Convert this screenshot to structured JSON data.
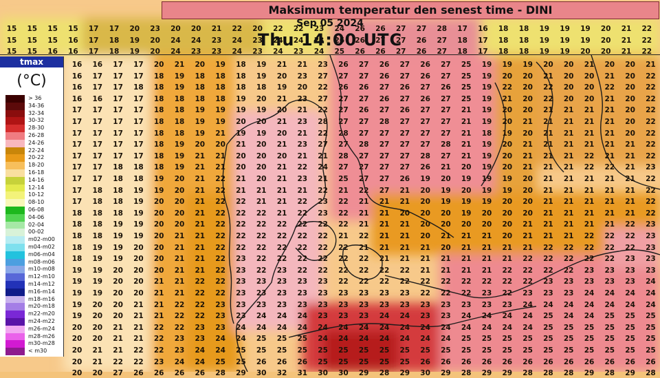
{
  "header": {
    "title": "Maksimum temperatur den senest time - DINI",
    "date": "Sep 05 2024",
    "valid_time": "Thu 14:00 UTC"
  },
  "legend": {
    "variable": "tmax",
    "unit": "(°C)",
    "items": [
      {
        "label": "> 36",
        "color": "#3b0000"
      },
      {
        "label": "34-36",
        "color": "#5c0a0a"
      },
      {
        "label": "32-34",
        "color": "#8a0d0d"
      },
      {
        "label": "30-32",
        "color": "#b01414"
      },
      {
        "label": "28-30",
        "color": "#d62e2e"
      },
      {
        "label": "26-28",
        "color": "#f07c82"
      },
      {
        "label": "24-26",
        "color": "#f8b8bf"
      },
      {
        "label": "22-24",
        "color": "#c8860a"
      },
      {
        "label": "20-22",
        "color": "#e89a18"
      },
      {
        "label": "18-20",
        "color": "#f7bf5c"
      },
      {
        "label": "16-18",
        "color": "#f9dfa0"
      },
      {
        "label": "14-16",
        "color": "#c6d23a"
      },
      {
        "label": "12-14",
        "color": "#e3ea4c"
      },
      {
        "label": "10-12",
        "color": "#f3f37a"
      },
      {
        "label": "08-10",
        "color": "#f8f8b8"
      },
      {
        "label": "06-08",
        "color": "#1db81d"
      },
      {
        "label": "04-06",
        "color": "#52d452"
      },
      {
        "label": "02-04",
        "color": "#a6e8a6"
      },
      {
        "label": "00-02",
        "color": "#d8f2d8"
      },
      {
        "label": "m02-m00",
        "color": "#b6ecf2"
      },
      {
        "label": "m04-m02",
        "color": "#7ee0ee"
      },
      {
        "label": "m06-m04",
        "color": "#22c2de"
      },
      {
        "label": "m08-m06",
        "color": "#4c9fe0"
      },
      {
        "label": "m10-m08",
        "color": "#8aa8e8"
      },
      {
        "label": "m12-m10",
        "color": "#5868d8"
      },
      {
        "label": "m14-m12",
        "color": "#2232b8"
      },
      {
        "label": "m16-m14",
        "color": "#101c8a"
      },
      {
        "label": "m18-m16",
        "color": "#c8b2ee"
      },
      {
        "label": "m20-m18",
        "color": "#a47ee6"
      },
      {
        "label": "m22-m20",
        "color": "#7a28d6"
      },
      {
        "label": "m24-m22",
        "color": "#5a14a8"
      },
      {
        "label": "m26-m24",
        "color": "#f2a8f2"
      },
      {
        "label": "m28-m26",
        "color": "#ea62ea"
      },
      {
        "label": "m30-m28",
        "color": "#d21ad2"
      },
      {
        "label": "< m30",
        "color": "#8e1a8e"
      }
    ]
  },
  "grid": {
    "top_rows": [
      [
        15,
        15,
        15,
        15,
        17,
        17,
        20,
        23,
        20,
        20,
        21,
        22,
        20,
        22,
        22,
        23,
        24,
        26,
        26,
        27,
        27,
        28,
        17,
        16,
        18,
        18,
        19,
        19,
        19,
        20,
        21,
        22
      ],
      [
        15,
        15,
        15,
        16,
        17,
        18,
        19,
        20,
        24,
        24,
        23,
        24,
        23,
        24,
        24,
        23,
        26,
        26,
        27,
        27,
        26,
        27,
        18,
        17,
        18,
        18,
        19,
        19,
        19,
        20,
        21,
        22
      ],
      [
        15,
        15,
        16,
        16,
        17,
        18,
        19,
        20,
        24,
        23,
        23,
        24,
        23,
        24,
        23,
        24,
        25,
        26,
        26,
        27,
        26,
        27,
        18,
        17,
        18,
        18,
        19,
        19,
        20,
        20,
        21,
        22
      ]
    ],
    "rows": [
      [
        16,
        16,
        17,
        17,
        20,
        21,
        20,
        19,
        18,
        19,
        21,
        21,
        23,
        26,
        27,
        26,
        27,
        26,
        27,
        25,
        19,
        19,
        19,
        20,
        20,
        21,
        20,
        20,
        21
      ],
      [
        16,
        17,
        17,
        17,
        18,
        19,
        18,
        18,
        18,
        19,
        20,
        23,
        27,
        27,
        27,
        26,
        27,
        26,
        27,
        25,
        19,
        20,
        20,
        21,
        20,
        20,
        21,
        20,
        22
      ],
      [
        16,
        17,
        17,
        18,
        18,
        19,
        18,
        18,
        18,
        18,
        19,
        20,
        22,
        26,
        26,
        27,
        26,
        27,
        26,
        25,
        19,
        22,
        20,
        22,
        20,
        20,
        22,
        20,
        22
      ],
      [
        16,
        16,
        17,
        17,
        18,
        18,
        18,
        18,
        19,
        20,
        21,
        23,
        27,
        27,
        27,
        26,
        27,
        26,
        27,
        25,
        19,
        21,
        20,
        22,
        20,
        20,
        21,
        20,
        22
      ],
      [
        17,
        17,
        17,
        17,
        18,
        18,
        19,
        19,
        19,
        19,
        20,
        21,
        22,
        27,
        26,
        27,
        26,
        27,
        27,
        21,
        19,
        20,
        20,
        21,
        21,
        21,
        21,
        20,
        22
      ],
      [
        17,
        17,
        17,
        17,
        18,
        18,
        19,
        19,
        20,
        20,
        21,
        23,
        28,
        27,
        27,
        28,
        27,
        27,
        27,
        21,
        19,
        20,
        21,
        21,
        21,
        21,
        21,
        20,
        22
      ],
      [
        17,
        17,
        17,
        17,
        18,
        18,
        19,
        21,
        19,
        19,
        20,
        21,
        22,
        28,
        27,
        27,
        27,
        27,
        27,
        21,
        18,
        19,
        20,
        21,
        21,
        21,
        21,
        20,
        22
      ],
      [
        17,
        17,
        17,
        17,
        18,
        19,
        20,
        20,
        21,
        20,
        21,
        23,
        27,
        27,
        28,
        27,
        27,
        27,
        28,
        21,
        19,
        20,
        21,
        21,
        21,
        21,
        21,
        21,
        22
      ],
      [
        17,
        17,
        17,
        17,
        18,
        19,
        21,
        21,
        20,
        20,
        20,
        21,
        21,
        28,
        27,
        27,
        27,
        28,
        27,
        21,
        19,
        20,
        21,
        21,
        21,
        22,
        21,
        21,
        22
      ],
      [
        17,
        17,
        18,
        18,
        18,
        19,
        21,
        21,
        20,
        20,
        21,
        22,
        24,
        27,
        27,
        27,
        27,
        26,
        21,
        20,
        19,
        20,
        21,
        21,
        21,
        22,
        22,
        21,
        23
      ],
      [
        17,
        17,
        18,
        18,
        19,
        20,
        21,
        22,
        21,
        20,
        21,
        23,
        21,
        25,
        27,
        27,
        26,
        19,
        20,
        19,
        19,
        19,
        20,
        21,
        21,
        21,
        21,
        21,
        22
      ],
      [
        17,
        18,
        18,
        19,
        19,
        20,
        21,
        22,
        21,
        21,
        21,
        21,
        22,
        21,
        22,
        27,
        21,
        20,
        19,
        20,
        19,
        19,
        20,
        21,
        21,
        21,
        21,
        21,
        22
      ],
      [
        17,
        18,
        18,
        19,
        20,
        20,
        21,
        22,
        22,
        21,
        21,
        22,
        23,
        22,
        21,
        21,
        21,
        20,
        19,
        19,
        19,
        20,
        20,
        21,
        21,
        21,
        21,
        21,
        22
      ],
      [
        18,
        18,
        18,
        19,
        20,
        20,
        21,
        22,
        22,
        22,
        21,
        22,
        23,
        22,
        21,
        21,
        20,
        20,
        20,
        19,
        20,
        20,
        20,
        21,
        21,
        21,
        21,
        21,
        22
      ],
      [
        18,
        18,
        19,
        19,
        20,
        20,
        21,
        22,
        22,
        22,
        22,
        22,
        22,
        22,
        21,
        21,
        21,
        20,
        20,
        20,
        20,
        20,
        21,
        21,
        21,
        21,
        21,
        22,
        23
      ],
      [
        18,
        18,
        19,
        19,
        20,
        21,
        21,
        22,
        22,
        22,
        22,
        22,
        22,
        21,
        22,
        21,
        21,
        20,
        21,
        21,
        21,
        20,
        21,
        21,
        21,
        22,
        22,
        22,
        23
      ],
      [
        18,
        19,
        19,
        20,
        20,
        21,
        21,
        22,
        22,
        22,
        22,
        22,
        22,
        22,
        21,
        21,
        21,
        21,
        20,
        21,
        21,
        21,
        21,
        22,
        22,
        22,
        22,
        22,
        23
      ],
      [
        18,
        19,
        19,
        20,
        20,
        21,
        21,
        22,
        23,
        22,
        22,
        22,
        22,
        22,
        22,
        21,
        21,
        21,
        21,
        21,
        21,
        21,
        22,
        22,
        22,
        22,
        22,
        23,
        23
      ],
      [
        19,
        19,
        20,
        20,
        20,
        21,
        21,
        22,
        23,
        22,
        23,
        22,
        22,
        22,
        22,
        22,
        22,
        21,
        21,
        21,
        21,
        22,
        22,
        22,
        22,
        23,
        23,
        23,
        23
      ],
      [
        19,
        19,
        20,
        20,
        21,
        21,
        22,
        22,
        23,
        23,
        23,
        23,
        23,
        22,
        22,
        22,
        22,
        22,
        22,
        22,
        22,
        22,
        22,
        23,
        23,
        23,
        23,
        23,
        24
      ],
      [
        19,
        19,
        20,
        20,
        21,
        21,
        22,
        22,
        23,
        23,
        23,
        23,
        23,
        23,
        23,
        23,
        23,
        22,
        22,
        22,
        23,
        22,
        23,
        23,
        23,
        24,
        24,
        24,
        24
      ],
      [
        19,
        20,
        20,
        21,
        21,
        22,
        22,
        23,
        23,
        23,
        23,
        23,
        23,
        23,
        23,
        23,
        23,
        23,
        23,
        23,
        23,
        23,
        24,
        24,
        24,
        24,
        24,
        24,
        24
      ],
      [
        19,
        20,
        20,
        21,
        21,
        22,
        22,
        23,
        23,
        24,
        24,
        24,
        23,
        23,
        23,
        24,
        24,
        23,
        23,
        24,
        24,
        24,
        24,
        25,
        24,
        24,
        25,
        25,
        25
      ],
      [
        20,
        20,
        21,
        21,
        22,
        22,
        23,
        23,
        24,
        24,
        24,
        24,
        24,
        24,
        24,
        24,
        24,
        24,
        24,
        24,
        24,
        24,
        24,
        25,
        25,
        25,
        25,
        25,
        25
      ],
      [
        20,
        20,
        21,
        21,
        22,
        23,
        23,
        24,
        24,
        25,
        25,
        25,
        24,
        24,
        24,
        24,
        24,
        24,
        24,
        25,
        25,
        25,
        25,
        25,
        25,
        25,
        25,
        25,
        25
      ],
      [
        20,
        21,
        21,
        22,
        22,
        23,
        24,
        24,
        25,
        25,
        25,
        25,
        25,
        25,
        25,
        25,
        25,
        25,
        25,
        25,
        25,
        25,
        25,
        25,
        25,
        25,
        25,
        25,
        25
      ],
      [
        20,
        21,
        22,
        22,
        23,
        24,
        24,
        25,
        25,
        26,
        26,
        26,
        25,
        25,
        25,
        25,
        25,
        26,
        26,
        26,
        26,
        26,
        26,
        26,
        26,
        26,
        26,
        26,
        26
      ],
      [
        20,
        20,
        27,
        26,
        26,
        26,
        26,
        28,
        29,
        30,
        32,
        31,
        30,
        30,
        29,
        28,
        29,
        30,
        29,
        28,
        29,
        29,
        28,
        28,
        28,
        29,
        28,
        29,
        28
      ]
    ]
  }
}
